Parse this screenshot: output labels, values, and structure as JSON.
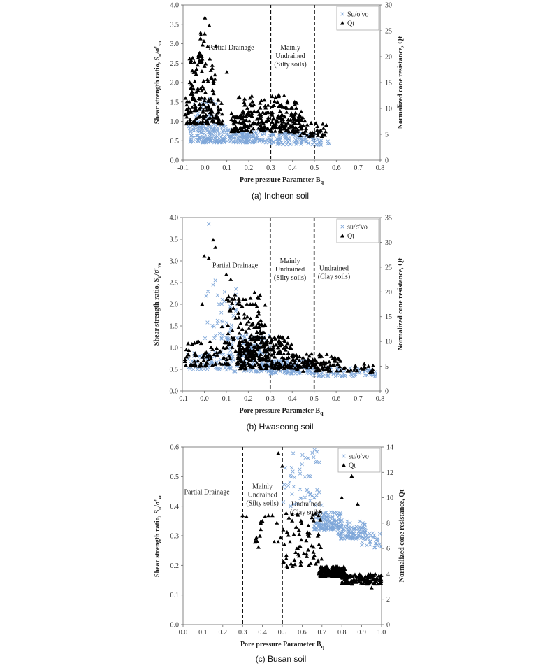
{
  "chart_data": [
    {
      "type": "scatter",
      "caption": "(a) Incheon soil",
      "xlabel": "Pore pressure Parameter B",
      "xlabel_sub": "q",
      "ylabel": "Shear strength ratio, S",
      "ylabel_sub": "u",
      "ylabel_tail": "/σ'",
      "ylabel_tail_sub": "vo",
      "y2label": "Normalized cone resistance, Qt",
      "xlim": [
        -0.1,
        0.8
      ],
      "ylim": [
        0,
        4.0
      ],
      "y2lim": [
        0,
        30
      ],
      "xticks": [
        "-0.1",
        "0.0",
        "0.1",
        "0.2",
        "0.3",
        "0.4",
        "0.5",
        "0.6",
        "0.7",
        "0.8"
      ],
      "yticks": [
        "0.0",
        "0.5",
        "1.0",
        "1.5",
        "2.0",
        "2.5",
        "3.0",
        "3.5",
        "4.0"
      ],
      "y2ticks": [
        "0",
        "5",
        "10",
        "15",
        "20",
        "25",
        "30"
      ],
      "dividers": [
        0.3,
        0.5
      ],
      "regions": [
        {
          "lines": [
            "Partial Drainage"
          ],
          "x": 0.12,
          "y": 2.85
        },
        {
          "lines": [
            "Mainly",
            "Undrained",
            "(Silty soils)"
          ],
          "x": 0.39,
          "y": 2.85
        }
      ],
      "legend": [
        {
          "name": "Su/σ'vo",
          "marker": "x",
          "color": "#7fa7d9"
        },
        {
          "name": "Qt",
          "marker": "triangle",
          "color": "#000000"
        }
      ],
      "series": [
        {
          "name": "Su/σ'vo",
          "axis": "left",
          "marker": "x",
          "color": "#7fa7d9",
          "clusters": [
            {
              "x": [
                -0.08,
                0.1
              ],
              "y": [
                0.45,
                0.9
              ],
              "n": 150
            },
            {
              "x": [
                -0.05,
                0.05
              ],
              "y": [
                0.9,
                1.6
              ],
              "n": 40
            },
            {
              "x": [
                0.1,
                0.3
              ],
              "y": [
                0.45,
                0.8
              ],
              "n": 130
            },
            {
              "x": [
                0.3,
                0.5
              ],
              "y": [
                0.4,
                0.7
              ],
              "n": 110
            },
            {
              "x": [
                0.5,
                0.57
              ],
              "y": [
                0.38,
                0.55
              ],
              "n": 14
            }
          ]
        },
        {
          "name": "Qt",
          "axis": "right",
          "marker": "triangle",
          "color": "#000000",
          "clusters": [
            {
              "x": [
                -0.09,
                0.08
              ],
              "y": [
                7,
                12
              ],
              "n": 110
            },
            {
              "x": [
                -0.07,
                0.05
              ],
              "y": [
                12,
                20
              ],
              "n": 60
            },
            {
              "x": [
                -0.03,
                0.03
              ],
              "y": [
                20,
                25
              ],
              "n": 12
            },
            {
              "x": [
                0.15,
                0.42
              ],
              "y": [
                10,
                12.6
              ],
              "n": 45
            },
            {
              "x": [
                0.12,
                0.45
              ],
              "y": [
                5.5,
                9.5
              ],
              "n": 220
            },
            {
              "x": [
                0.4,
                0.56
              ],
              "y": [
                4.5,
                8
              ],
              "n": 45
            }
          ],
          "points": [
            [
              0.0,
              27.5
            ],
            [
              -0.02,
              24.6
            ],
            [
              -0.07,
              19.6
            ],
            [
              0.05,
              22.0
            ],
            [
              0.1,
              17.0
            ],
            [
              0.02,
              26.0
            ]
          ]
        }
      ]
    },
    {
      "type": "scatter",
      "caption": "(b) Hwaseong soil",
      "xlabel": "Pore pressure Parameter B",
      "xlabel_sub": "q",
      "ylabel": "Shear strength ratio, S",
      "ylabel_sub": "u",
      "ylabel_tail": "/σ'",
      "ylabel_tail_sub": "vo",
      "y2label": "Normalized cone resistance, Qt",
      "xlim": [
        -0.1,
        0.8
      ],
      "ylim": [
        0,
        4.0
      ],
      "y2lim": [
        0,
        35
      ],
      "xticks": [
        "-0.1",
        "0.0",
        "0.1",
        "0.2",
        "0.3",
        "0.4",
        "0.5",
        "0.6",
        "0.7",
        "0.8"
      ],
      "yticks": [
        "0.0",
        "0.5",
        "1.0",
        "1.5",
        "2.0",
        "2.5",
        "3.0",
        "3.5",
        "4.0"
      ],
      "y2ticks": [
        "0",
        "5",
        "10",
        "15",
        "20",
        "25",
        "30",
        "35"
      ],
      "dividers": [
        0.3,
        0.5
      ],
      "regions": [
        {
          "lines": [
            "Partial Drainage"
          ],
          "x": 0.14,
          "y": 2.85
        },
        {
          "lines": [
            "Mainly",
            "Undrained",
            "(Silty soils)"
          ],
          "x": 0.39,
          "y": 2.95
        },
        {
          "lines": [
            "Undrained",
            "(Clay soils)"
          ],
          "x": 0.59,
          "y": 2.78
        }
      ],
      "legend": [
        {
          "name": "su/σ'vo",
          "marker": "x",
          "color": "#7fa7d9"
        },
        {
          "name": "Qt",
          "marker": "triangle",
          "color": "#000000"
        }
      ],
      "series": [
        {
          "name": "su/σ'vo",
          "axis": "left",
          "marker": "x",
          "color": "#7fa7d9",
          "clusters": [
            {
              "x": [
                -0.08,
                0.1
              ],
              "y": [
                0.5,
                0.9
              ],
              "n": 60
            },
            {
              "x": [
                0.0,
                0.15
              ],
              "y": [
                1.2,
                2.4
              ],
              "n": 40
            },
            {
              "x": [
                0.1,
                0.3
              ],
              "y": [
                0.45,
                1.3
              ],
              "n": 170
            },
            {
              "x": [
                0.3,
                0.5
              ],
              "y": [
                0.4,
                0.7
              ],
              "n": 150
            },
            {
              "x": [
                0.5,
                0.78
              ],
              "y": [
                0.33,
                0.55
              ],
              "n": 80
            }
          ],
          "points": [
            [
              0.02,
              3.85
            ],
            [
              0.05,
              2.55
            ],
            [
              0.04,
              2.45
            ]
          ]
        },
        {
          "name": "Qt",
          "axis": "right",
          "marker": "triangle",
          "color": "#000000",
          "clusters": [
            {
              "x": [
                -0.09,
                0.12
              ],
              "y": [
                5,
                10
              ],
              "n": 80
            },
            {
              "x": [
                0.1,
                0.28
              ],
              "y": [
                8,
                20
              ],
              "n": 110
            },
            {
              "x": [
                0.15,
                0.4
              ],
              "y": [
                4.5,
                11
              ],
              "n": 250
            },
            {
              "x": [
                0.4,
                0.62
              ],
              "y": [
                4,
                7.5
              ],
              "n": 110
            },
            {
              "x": [
                0.62,
                0.78
              ],
              "y": [
                3.8,
                5.5
              ],
              "n": 22
            }
          ],
          "points": [
            [
              0.0,
              27.2
            ],
            [
              0.02,
              26.8
            ],
            [
              0.04,
              30.5
            ],
            [
              0.05,
              29.0
            ],
            [
              0.1,
              23.5
            ],
            [
              0.12,
              22.5
            ],
            [
              -0.01,
              17.5
            ],
            [
              0.08,
              13.0
            ]
          ]
        }
      ]
    },
    {
      "type": "scatter",
      "caption": "(c) Busan soil",
      "xlabel": "Pore pressure Parameter B",
      "xlabel_sub": "q",
      "ylabel": "Shear strength ratio, S",
      "ylabel_sub": "u",
      "ylabel_tail": "/σ'",
      "ylabel_tail_sub": "vo",
      "y2label": "Normalized cone resistance, Qt",
      "xlim": [
        0,
        1.0
      ],
      "ylim": [
        0,
        0.6
      ],
      "y2lim": [
        0,
        14
      ],
      "xticks": [
        "0.0",
        "0.1",
        "0.2",
        "0.3",
        "0.4",
        "0.5",
        "0.6",
        "0.7",
        "0.8",
        "0.9",
        "1.0"
      ],
      "yticks": [
        "0.0",
        "0.1",
        "0.2",
        "0.3",
        "0.4",
        "0.5",
        "0.6"
      ],
      "y2ticks": [
        "0",
        "2",
        "4",
        "6",
        "8",
        "10",
        "12",
        "14"
      ],
      "dividers": [
        0.3,
        0.5
      ],
      "regions": [
        {
          "lines": [
            "Partial Drainage"
          ],
          "x": 0.12,
          "y": 0.44
        },
        {
          "lines": [
            "Mainly",
            "Undrained",
            "(Silty soils)"
          ],
          "x": 0.4,
          "y": 0.46
        },
        {
          "lines": [
            "Undrained",
            "(Clay soils)"
          ],
          "x": 0.62,
          "y": 0.4
        }
      ],
      "legend": [
        {
          "name": "su/σ'vo",
          "marker": "x",
          "color": "#7fa7d9"
        },
        {
          "name": "Qt",
          "marker": "triangle",
          "color": "#000000"
        }
      ],
      "series": [
        {
          "name": "su/σ'vo",
          "axis": "left",
          "marker": "x",
          "color": "#7fa7d9",
          "clusters": [
            {
              "x": [
                0.5,
                0.7
              ],
              "y": [
                0.4,
                0.59
              ],
              "n": 50
            },
            {
              "x": [
                0.66,
                0.8
              ],
              "y": [
                0.32,
                0.38
              ],
              "n": 130
            },
            {
              "x": [
                0.78,
                0.92
              ],
              "y": [
                0.29,
                0.35
              ],
              "n": 110
            },
            {
              "x": [
                0.9,
                1.0
              ],
              "y": [
                0.26,
                0.31
              ],
              "n": 30
            }
          ]
        },
        {
          "name": "Qt",
          "axis": "right",
          "marker": "triangle",
          "color": "#000000",
          "clusters": [
            {
              "x": [
                0.36,
                0.5
              ],
              "y": [
                6.5,
                8.7
              ],
              "n": 14
            },
            {
              "x": [
                0.5,
                0.7
              ],
              "y": [
                4.5,
                9
              ],
              "n": 70
            },
            {
              "x": [
                0.68,
                0.82
              ],
              "y": [
                3.8,
                4.6
              ],
              "n": 160
            },
            {
              "x": [
                0.8,
                1.0
              ],
              "y": [
                3.2,
                4.0
              ],
              "n": 120
            }
          ],
          "points": [
            [
              0.48,
              13.5
            ],
            [
              0.5,
              12.5
            ],
            [
              0.85,
              11.7
            ],
            [
              0.8,
              10.0
            ],
            [
              0.88,
              9.5
            ],
            [
              0.3,
              8.6
            ],
            [
              0.32,
              8.5
            ],
            [
              0.43,
              8.6
            ],
            [
              0.45,
              8.6
            ],
            [
              0.38,
              6.1
            ],
            [
              0.95,
              2.9
            ]
          ]
        }
      ]
    }
  ]
}
